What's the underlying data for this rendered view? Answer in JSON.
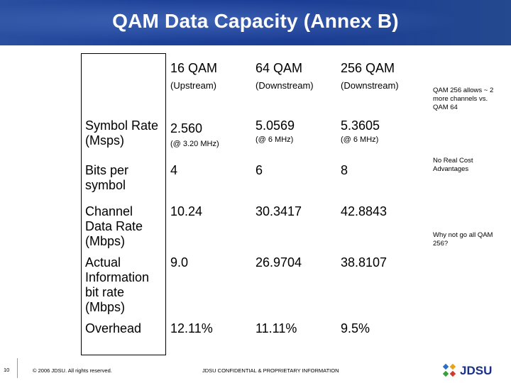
{
  "title": "QAM Data Capacity (Annex B)",
  "columns": [
    {
      "name": "16 QAM",
      "sub": "(Upstream)"
    },
    {
      "name": "64 QAM",
      "sub": "(Downstream)"
    },
    {
      "name": "256 QAM",
      "sub": "(Downstream)"
    }
  ],
  "rows": [
    {
      "label": "Symbol Rate (Msps)",
      "values": [
        "2.560",
        "5.0569",
        "5.3605"
      ],
      "subs": [
        "(@ 3.20 MHz)",
        "(@ 6 MHz)",
        "(@ 6 MHz)"
      ]
    },
    {
      "label": "Bits per symbol",
      "values": [
        "4",
        "6",
        "8"
      ]
    },
    {
      "label": "Channel Data Rate (Mbps)",
      "values": [
        "10.24",
        "30.3417",
        "42.8843"
      ]
    },
    {
      "label": "Actual Information bit rate (Mbps)",
      "values": [
        "9.0",
        "26.9704",
        "38.8107"
      ]
    },
    {
      "label": "Overhead",
      "values": [
        "12.11%",
        "11.11%",
        "9.5%"
      ]
    }
  ],
  "notes": [
    "QAM 256 allows ~ 2 more channels vs. QAM 64",
    "No Real Cost Advantages",
    "Why not go all QAM 256?"
  ],
  "footer": {
    "page_number": "10",
    "copyright": "© 2006 JDSU. All rights reserved.",
    "confidential": "JDSU CONFIDENTIAL & PROPRIETARY INFORMATION",
    "logo_text": "JDSU"
  },
  "colors": {
    "header_blue": "#1c3f97",
    "logo_blue": "#1a2f86"
  }
}
